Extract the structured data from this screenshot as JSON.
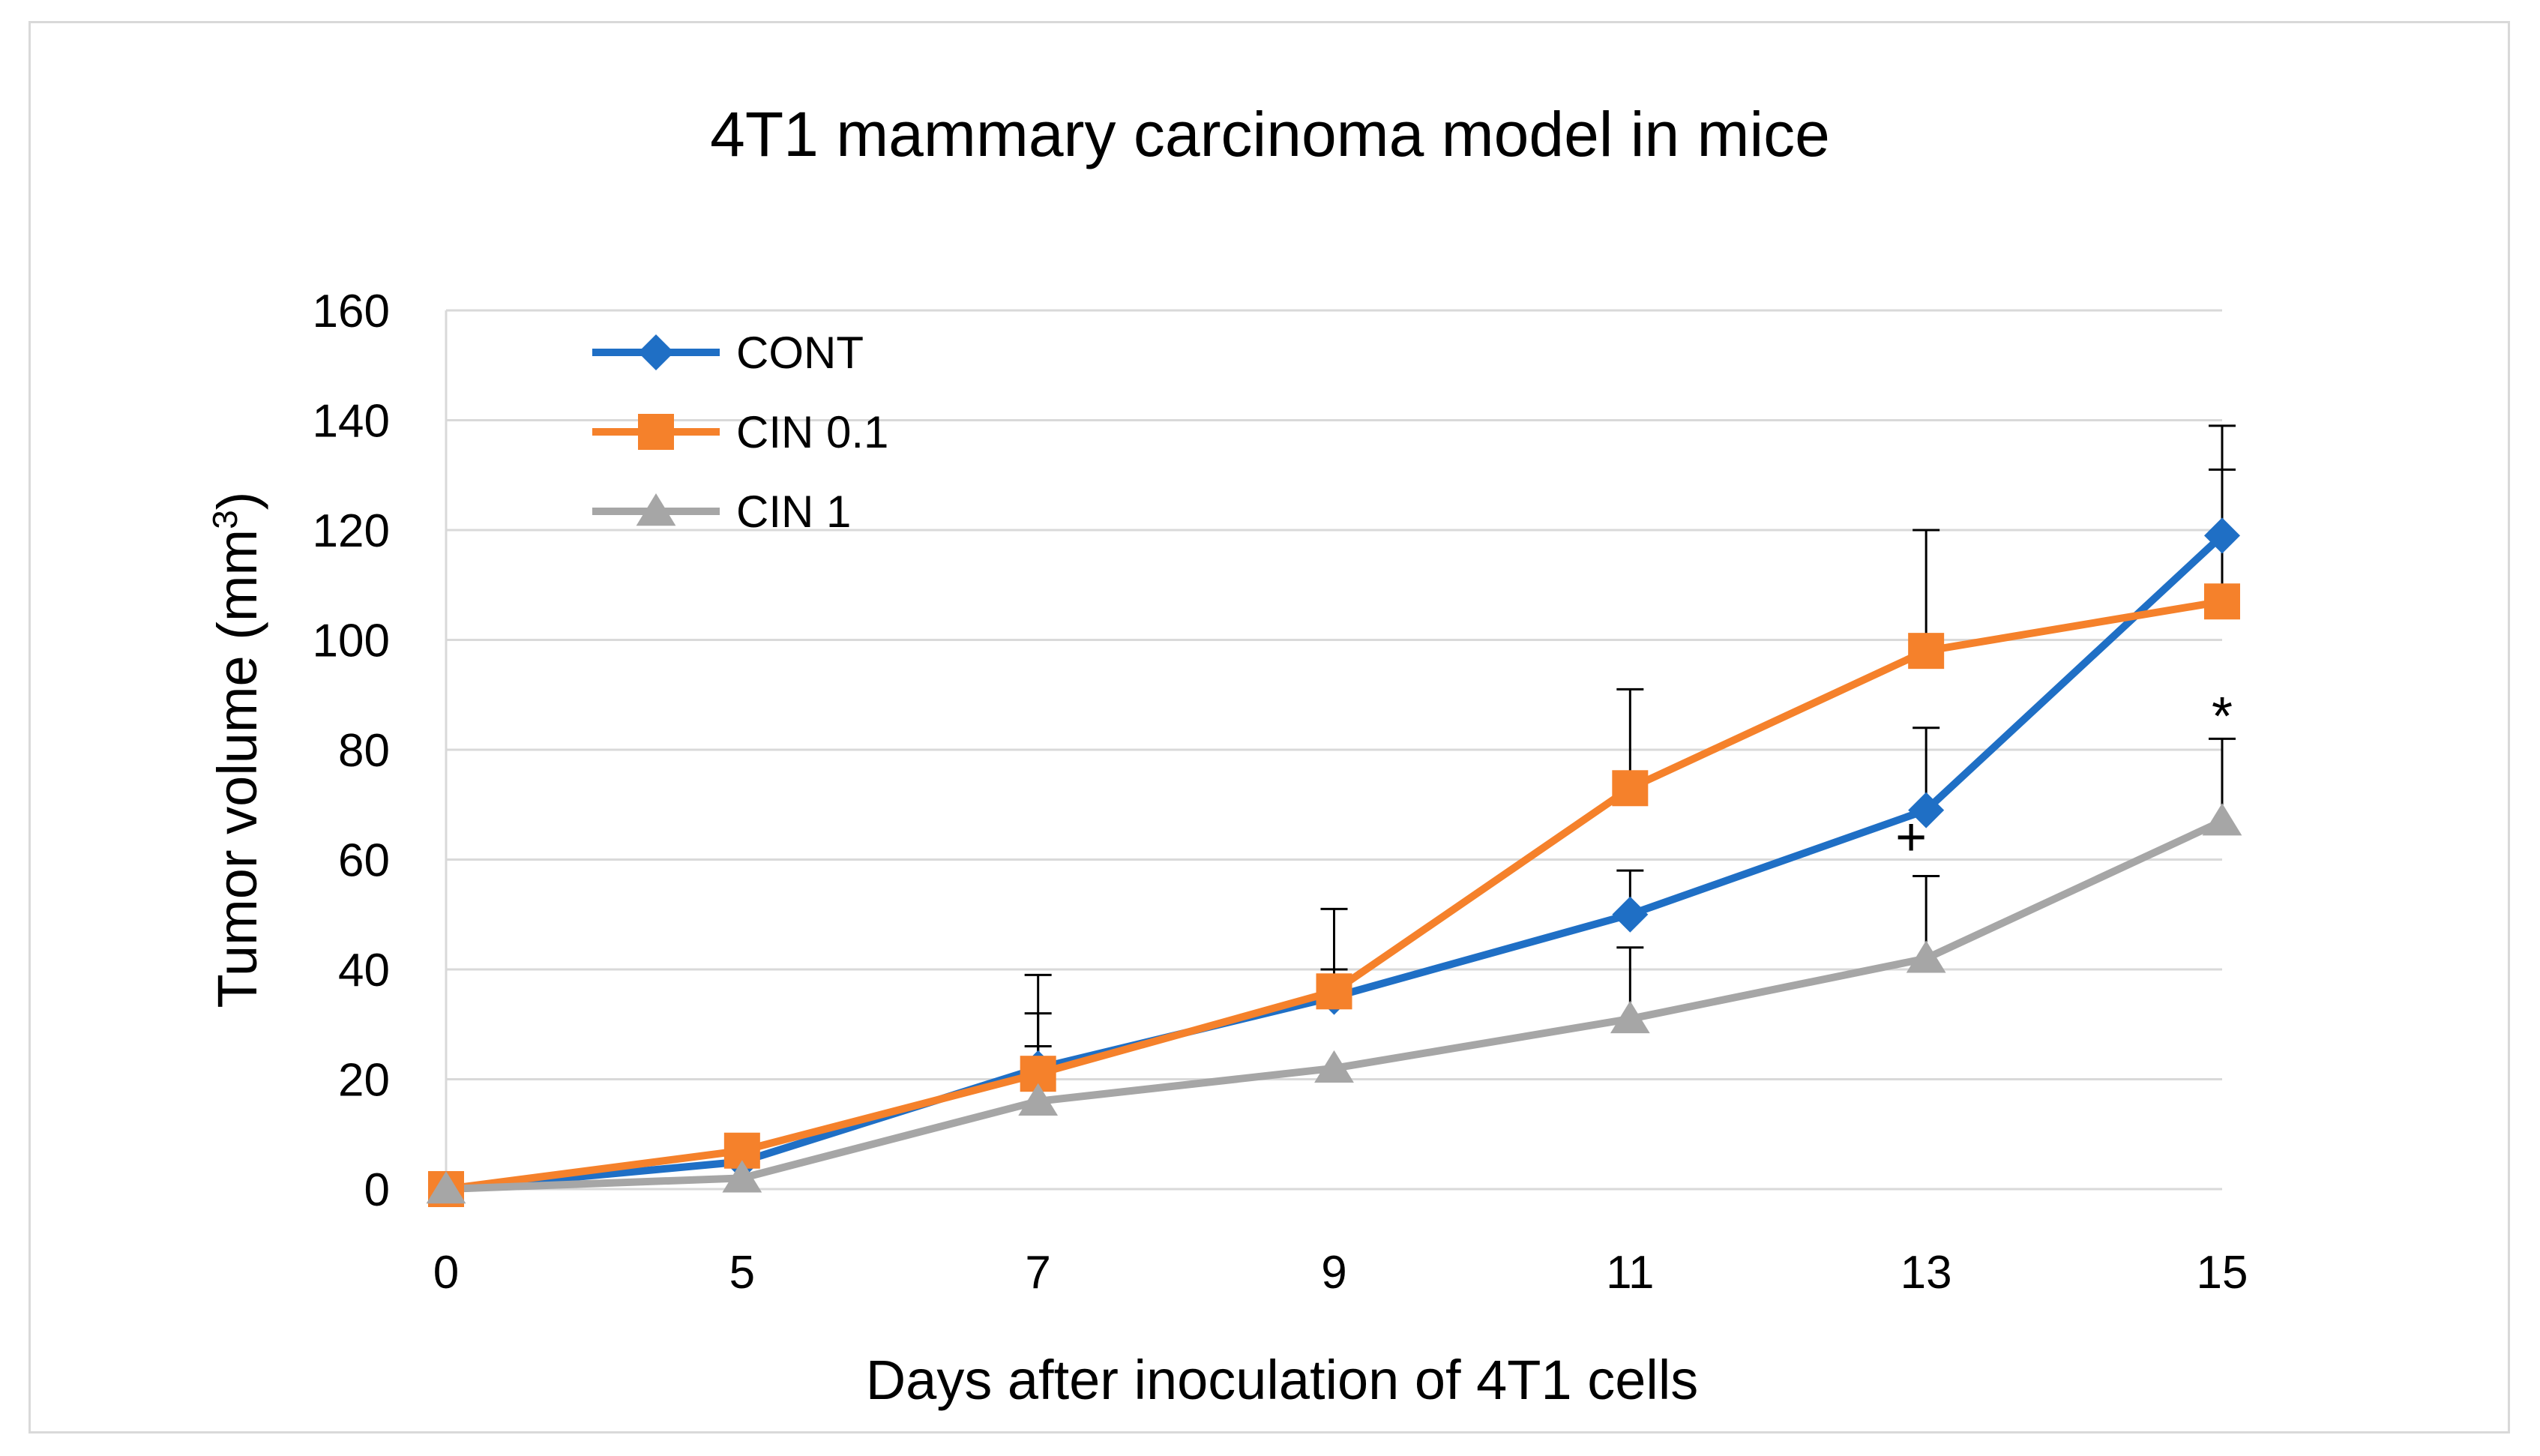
{
  "chart_data": {
    "type": "line",
    "title": "4T1 mammary carcinoma model in mice",
    "xlabel": "Days after inoculation of 4T1 cells",
    "ylabel": "Tumor volume (mm",
    "ylabel_sup": "3",
    "ylabel_close": ")",
    "categories": [
      "0",
      "5",
      "7",
      "9",
      "11",
      "13",
      "15"
    ],
    "ylim": [
      0,
      160
    ],
    "yticks": [
      0,
      20,
      40,
      60,
      80,
      100,
      120,
      140,
      160
    ],
    "ytick_labels": [
      "0",
      "20",
      "40",
      "60",
      "80",
      "100",
      "120",
      "140",
      "160"
    ],
    "grid": true,
    "legend_position": "top-left",
    "series": [
      {
        "name": "CONT",
        "color": "#1f6fc5",
        "marker": "diamond",
        "values": [
          0,
          5,
          22,
          35,
          50,
          69,
          119
        ],
        "error_upper": [
          0,
          0,
          32,
          40,
          58,
          84,
          131
        ]
      },
      {
        "name": "CIN 0.1",
        "color": "#f5812b",
        "marker": "square",
        "values": [
          0,
          7,
          21,
          36,
          73,
          98,
          107
        ],
        "error_upper": [
          0,
          0,
          39,
          51,
          91,
          120,
          139
        ]
      },
      {
        "name": "CIN 1",
        "color": "#a6a6a6",
        "marker": "triangle",
        "values": [
          0,
          2,
          16,
          22,
          31,
          42,
          67
        ],
        "error_upper": [
          0,
          0,
          26,
          0,
          44,
          57,
          82
        ]
      }
    ],
    "annotations": [
      {
        "text": "+",
        "x_index": 5,
        "y": 64
      },
      {
        "text": "*",
        "x_index": 6,
        "y": 86
      }
    ]
  }
}
